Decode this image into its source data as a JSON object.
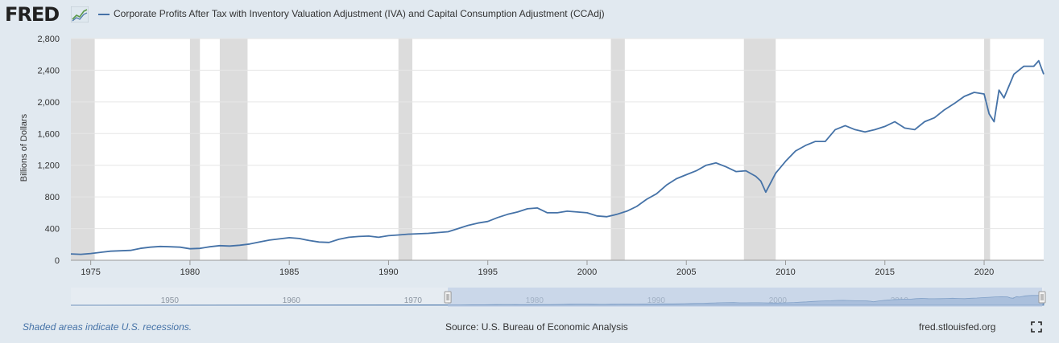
{
  "header": {
    "logo": "FRED",
    "series_label": "Corporate Profits After Tax with Inventory Valuation Adjustment (IVA) and Capital Consumption Adjustment (CCAdj)"
  },
  "footer": {
    "recession_note": "Shaded areas indicate U.S. recessions.",
    "source": "Source: U.S. Bureau of Economic Analysis",
    "site": "fred.stlouisfed.org"
  },
  "colors": {
    "line": "#4572a7",
    "recession": "#dcdcdc",
    "navigator_fill": "#b3c6e2"
  },
  "chart_data": {
    "type": "line",
    "ylabel": "Billions of Dollars",
    "ylim": [
      0,
      2800
    ],
    "xlim": [
      1974.0,
      2023.0
    ],
    "y_ticks": [
      0,
      400,
      800,
      1200,
      1600,
      2000,
      2400,
      2800
    ],
    "y_tick_labels": [
      "0",
      "400",
      "800",
      "1,200",
      "1,600",
      "2,000",
      "2,400",
      "2,800"
    ],
    "x_ticks": [
      1975,
      1980,
      1985,
      1990,
      1995,
      2000,
      2005,
      2010,
      2015,
      2020
    ],
    "grid": true,
    "recessions": [
      [
        1974.0,
        1975.2
      ],
      [
        1980.0,
        1980.5
      ],
      [
        1981.5,
        1982.9
      ],
      [
        1990.5,
        1991.2
      ],
      [
        2001.2,
        2001.9
      ],
      [
        2007.9,
        2009.5
      ],
      [
        2020.0,
        2020.3
      ]
    ],
    "navigator": {
      "labels": [
        "1950",
        "1960",
        "1970",
        "1980",
        "1990",
        "2000",
        "2010",
        "2020"
      ],
      "range_start": "1974",
      "range_end": "2023"
    },
    "series": [
      {
        "name": "Corporate Profits After Tax with Inventory Valuation Adjustment (IVA) and Capital Consumption Adjustment (CCAdj)",
        "x": [
          1974.0,
          1974.5,
          1975.0,
          1975.5,
          1976.0,
          1976.5,
          1977.0,
          1977.5,
          1978.0,
          1978.5,
          1979.0,
          1979.5,
          1980.0,
          1980.5,
          1981.0,
          1981.5,
          1982.0,
          1982.5,
          1983.0,
          1983.5,
          1984.0,
          1984.5,
          1985.0,
          1985.5,
          1986.0,
          1986.5,
          1987.0,
          1987.5,
          1988.0,
          1988.5,
          1989.0,
          1989.5,
          1990.0,
          1990.5,
          1991.0,
          1991.5,
          1992.0,
          1992.5,
          1993.0,
          1993.5,
          1994.0,
          1994.5,
          1995.0,
          1995.5,
          1996.0,
          1996.5,
          1997.0,
          1997.5,
          1998.0,
          1998.5,
          1999.0,
          1999.5,
          2000.0,
          2000.5,
          2001.0,
          2001.5,
          2002.0,
          2002.5,
          2003.0,
          2003.5,
          2004.0,
          2004.5,
          2005.0,
          2005.5,
          2006.0,
          2006.5,
          2007.0,
          2007.5,
          2008.0,
          2008.5,
          2008.75,
          2009.0,
          2009.5,
          2010.0,
          2010.5,
          2011.0,
          2011.5,
          2012.0,
          2012.5,
          2013.0,
          2013.5,
          2014.0,
          2014.5,
          2015.0,
          2015.5,
          2016.0,
          2016.5,
          2017.0,
          2017.5,
          2018.0,
          2018.5,
          2019.0,
          2019.5,
          2020.0,
          2020.25,
          2020.5,
          2020.75,
          2021.0,
          2021.5,
          2022.0,
          2022.5,
          2022.75,
          2023.0
        ],
        "y": [
          80,
          75,
          85,
          100,
          115,
          120,
          125,
          150,
          165,
          175,
          170,
          165,
          145,
          150,
          170,
          185,
          180,
          190,
          205,
          230,
          255,
          270,
          285,
          275,
          250,
          230,
          225,
          265,
          290,
          300,
          305,
          290,
          310,
          320,
          330,
          335,
          340,
          350,
          360,
          400,
          440,
          470,
          490,
          540,
          580,
          610,
          650,
          660,
          600,
          600,
          620,
          610,
          600,
          560,
          550,
          580,
          620,
          680,
          770,
          840,
          950,
          1030,
          1080,
          1130,
          1200,
          1230,
          1180,
          1120,
          1130,
          1060,
          1000,
          860,
          1100,
          1250,
          1380,
          1450,
          1500,
          1500,
          1650,
          1700,
          1650,
          1620,
          1650,
          1690,
          1750,
          1670,
          1650,
          1750,
          1800,
          1900,
          1980,
          2070,
          2120,
          2100,
          1850,
          1750,
          2150,
          2050,
          2350,
          2450,
          2450,
          2520,
          2350
        ],
        "color": "#4572a7"
      }
    ]
  }
}
